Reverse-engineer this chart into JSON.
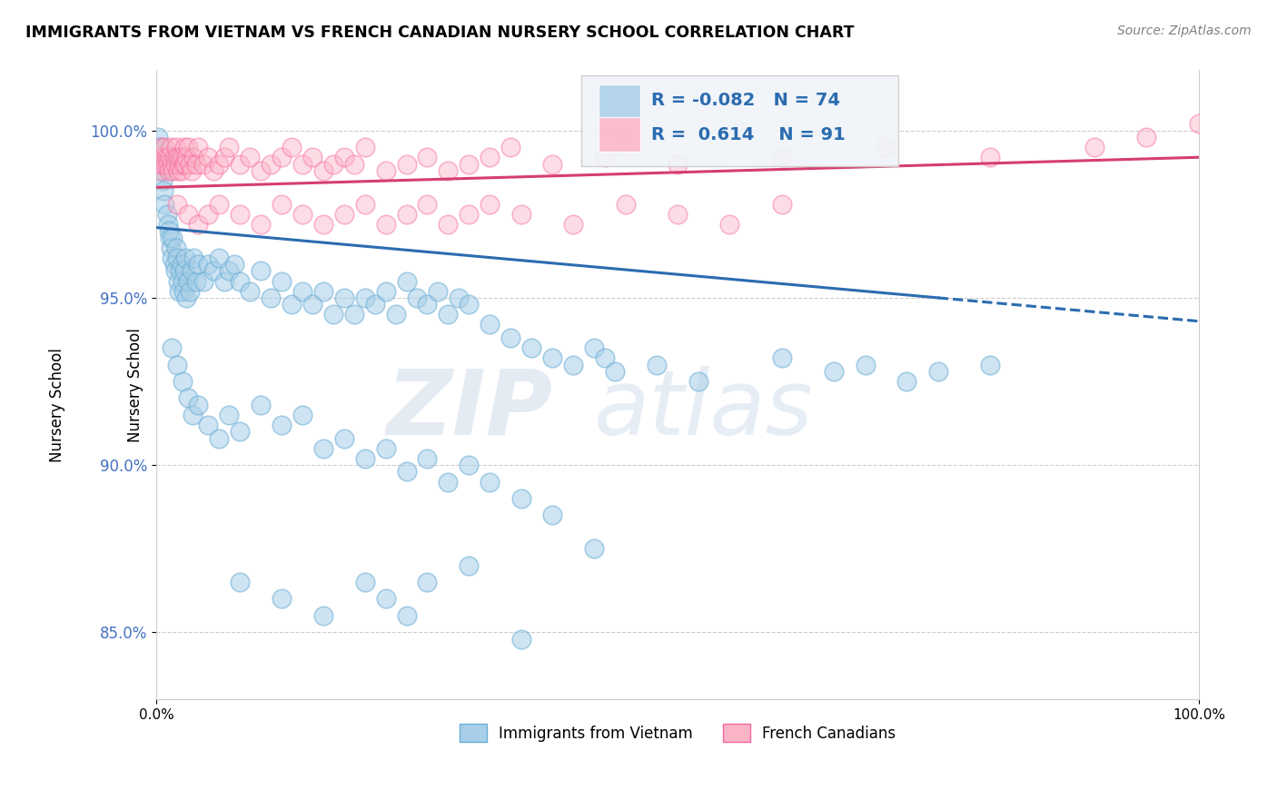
{
  "title": "IMMIGRANTS FROM VIETNAM VS FRENCH CANADIAN NURSERY SCHOOL CORRELATION CHART",
  "source": "Source: ZipAtlas.com",
  "ylabel": "Nursery School",
  "xlim": [
    0.0,
    100.0
  ],
  "ylim": [
    83.0,
    101.8
  ],
  "yticks": [
    85.0,
    90.0,
    95.0,
    100.0
  ],
  "ytick_labels": [
    "85.0%",
    "90.0%",
    "95.0%",
    "100.0%"
  ],
  "legend_r_blue": "-0.082",
  "legend_n_blue": "74",
  "legend_r_pink": "0.614",
  "legend_n_pink": "91",
  "blue_color": "#a8cfe8",
  "blue_edge": "#6baed6",
  "pink_color": "#fbb4c6",
  "pink_edge": "#f768a1",
  "line_blue_color": "#2b6cb0",
  "line_pink_color": "#d63e6e",
  "watermark": "ZIPatlas",
  "blue_line_start_x": 0.0,
  "blue_line_start_y": 97.1,
  "blue_line_end_x": 100.0,
  "blue_line_end_y": 94.3,
  "blue_solid_end_x": 75.0,
  "pink_line_start_x": 0.0,
  "pink_line_start_y": 98.3,
  "pink_line_end_x": 100.0,
  "pink_line_end_y": 99.2,
  "blue_x": [
    0.2,
    0.3,
    0.4,
    0.5,
    0.6,
    0.7,
    0.8,
    0.9,
    1.0,
    1.1,
    1.2,
    1.3,
    1.4,
    1.5,
    1.6,
    1.7,
    1.8,
    1.9,
    2.0,
    2.1,
    2.2,
    2.3,
    2.4,
    2.5,
    2.6,
    2.7,
    2.8,
    2.9,
    3.0,
    3.2,
    3.4,
    3.6,
    3.8,
    4.0,
    4.5,
    5.0,
    5.5,
    6.0,
    6.5,
    7.0,
    7.5,
    8.0,
    9.0,
    10.0,
    11.0,
    12.0,
    13.0,
    14.0,
    15.0,
    16.0,
    17.0,
    18.0,
    19.0,
    20.0,
    21.0,
    22.0,
    23.0,
    24.0,
    25.0,
    26.0,
    27.0,
    28.0,
    29.0,
    30.0,
    32.0,
    34.0,
    36.0,
    38.0,
    40.0,
    42.0,
    43.0,
    44.0,
    48.0,
    52.0,
    60.0,
    65.0,
    68.0,
    72.0,
    75.0,
    80.0
  ],
  "blue_y": [
    99.8,
    99.5,
    99.2,
    98.8,
    98.5,
    98.2,
    97.8,
    99.0,
    97.5,
    97.2,
    97.0,
    96.8,
    96.5,
    96.2,
    96.8,
    96.0,
    95.8,
    96.5,
    96.2,
    95.5,
    95.2,
    95.8,
    96.0,
    95.5,
    95.2,
    95.8,
    96.2,
    95.0,
    95.5,
    95.2,
    95.8,
    96.2,
    95.5,
    96.0,
    95.5,
    96.0,
    95.8,
    96.2,
    95.5,
    95.8,
    96.0,
    95.5,
    95.2,
    95.8,
    95.0,
    95.5,
    94.8,
    95.2,
    94.8,
    95.2,
    94.5,
    95.0,
    94.5,
    95.0,
    94.8,
    95.2,
    94.5,
    95.5,
    95.0,
    94.8,
    95.2,
    94.5,
    95.0,
    94.8,
    94.2,
    93.8,
    93.5,
    93.2,
    93.0,
    93.5,
    93.2,
    92.8,
    93.0,
    92.5,
    93.2,
    92.8,
    93.0,
    92.5,
    92.8,
    93.0
  ],
  "blue_x2": [
    1.5,
    2.0,
    2.5,
    3.0,
    3.5,
    4.0,
    5.0,
    6.0,
    7.0,
    8.0,
    10.0,
    12.0,
    14.0,
    16.0,
    18.0,
    20.0,
    22.0,
    24.0,
    26.0,
    28.0,
    30.0,
    32.0,
    35.0,
    38.0,
    42.0
  ],
  "blue_y2": [
    93.5,
    93.0,
    92.5,
    92.0,
    91.5,
    91.8,
    91.2,
    90.8,
    91.5,
    91.0,
    91.8,
    91.2,
    91.5,
    90.5,
    90.8,
    90.2,
    90.5,
    89.8,
    90.2,
    89.5,
    90.0,
    89.5,
    89.0,
    88.5,
    87.5
  ],
  "blue_x3": [
    8.0,
    12.0,
    16.0,
    20.0,
    22.0,
    24.0,
    26.0,
    30.0,
    35.0
  ],
  "blue_y3": [
    86.5,
    86.0,
    85.5,
    86.5,
    86.0,
    85.5,
    86.5,
    87.0,
    84.8
  ],
  "pink_x": [
    0.2,
    0.3,
    0.4,
    0.5,
    0.6,
    0.7,
    0.8,
    0.9,
    1.0,
    1.1,
    1.2,
    1.3,
    1.4,
    1.5,
    1.6,
    1.7,
    1.8,
    1.9,
    2.0,
    2.1,
    2.2,
    2.3,
    2.4,
    2.5,
    2.6,
    2.7,
    2.8,
    2.9,
    3.0,
    3.2,
    3.4,
    3.6,
    3.8,
    4.0,
    4.5,
    5.0,
    5.5,
    6.0,
    6.5,
    7.0,
    8.0,
    9.0,
    10.0,
    11.0,
    12.0,
    13.0,
    14.0,
    15.0,
    16.0,
    17.0,
    18.0,
    19.0,
    20.0,
    22.0,
    24.0,
    26.0,
    28.0,
    30.0,
    32.0,
    34.0,
    38.0,
    43.0,
    45.0,
    50.0,
    60.0,
    70.0,
    80.0,
    90.0,
    95.0,
    100.0
  ],
  "pink_y": [
    99.0,
    99.2,
    98.8,
    99.5,
    99.0,
    99.2,
    99.5,
    99.0,
    99.2,
    99.0,
    98.8,
    99.2,
    99.5,
    99.0,
    98.8,
    99.2,
    99.0,
    99.5,
    99.2,
    98.8,
    99.0,
    99.2,
    98.8,
    99.2,
    99.0,
    99.5,
    99.0,
    99.2,
    99.5,
    99.0,
    98.8,
    99.2,
    99.0,
    99.5,
    99.0,
    99.2,
    98.8,
    99.0,
    99.2,
    99.5,
    99.0,
    99.2,
    98.8,
    99.0,
    99.2,
    99.5,
    99.0,
    99.2,
    98.8,
    99.0,
    99.2,
    99.0,
    99.5,
    98.8,
    99.0,
    99.2,
    98.8,
    99.0,
    99.2,
    99.5,
    99.0,
    99.2,
    99.5,
    99.0,
    99.2,
    99.5,
    99.2,
    99.5,
    99.8,
    100.2
  ],
  "pink_x2": [
    2.0,
    3.0,
    4.0,
    5.0,
    6.0,
    8.0,
    10.0,
    12.0,
    14.0,
    16.0,
    18.0,
    20.0,
    22.0,
    24.0,
    26.0,
    28.0,
    30.0,
    32.0,
    35.0,
    40.0,
    45.0,
    50.0,
    55.0,
    60.0
  ],
  "pink_y2": [
    97.8,
    97.5,
    97.2,
    97.5,
    97.8,
    97.5,
    97.2,
    97.8,
    97.5,
    97.2,
    97.5,
    97.8,
    97.2,
    97.5,
    97.8,
    97.2,
    97.5,
    97.8,
    97.5,
    97.2,
    97.8,
    97.5,
    97.2,
    97.8
  ]
}
